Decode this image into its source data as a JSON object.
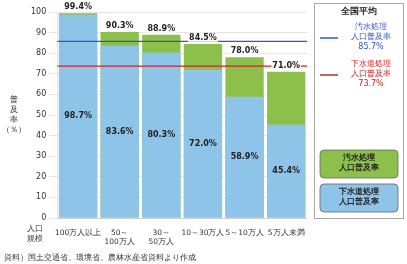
{
  "chart_data": {
    "type": "bar",
    "categories": [
      "100万人以上",
      "50～\n100万人",
      "30～\n50万人",
      "10～30万人",
      "5～10万人",
      "5万人未満"
    ],
    "series": [
      {
        "name": "下水道処理\n人口普及率",
        "color": "#8ec4e8",
        "values": [
          98.7,
          83.6,
          80.3,
          72.0,
          58.9,
          45.4
        ],
        "value_labels": [
          "98.7%",
          "83.6%",
          "80.3%",
          "72.0%",
          "58.9%",
          "45.4%"
        ]
      },
      {
        "name": "汚水処理\n人口普及率",
        "color": "#8dc04a",
        "values": [
          99.4,
          90.3,
          88.9,
          84.5,
          78.0,
          71.0
        ],
        "value_labels": [
          "99.4%",
          "90.3%",
          "88.9%",
          "84.5%",
          "78.0%",
          "71.0%"
        ]
      }
    ],
    "xlabel": "人口\n規模",
    "ylabel": "普\n及\n率\n（％）",
    "ylim": [
      0,
      100
    ],
    "yticks": [
      0,
      10,
      20,
      30,
      40,
      50,
      60,
      70,
      80,
      90,
      100
    ],
    "grid": true,
    "data_labels": true,
    "legend": "right",
    "legend_title": "全国平均",
    "reference_lines": [
      {
        "value": 85.7,
        "color": "#3355cc",
        "label": "汚水処理\n人口普及率\n85.7%"
      },
      {
        "value": 73.7,
        "color": "#cc2222",
        "label": "下水道処理\n人口普及率\n73.7%"
      }
    ],
    "source": "資料）国土交通省、環境省、農林水産省資料より作成"
  }
}
